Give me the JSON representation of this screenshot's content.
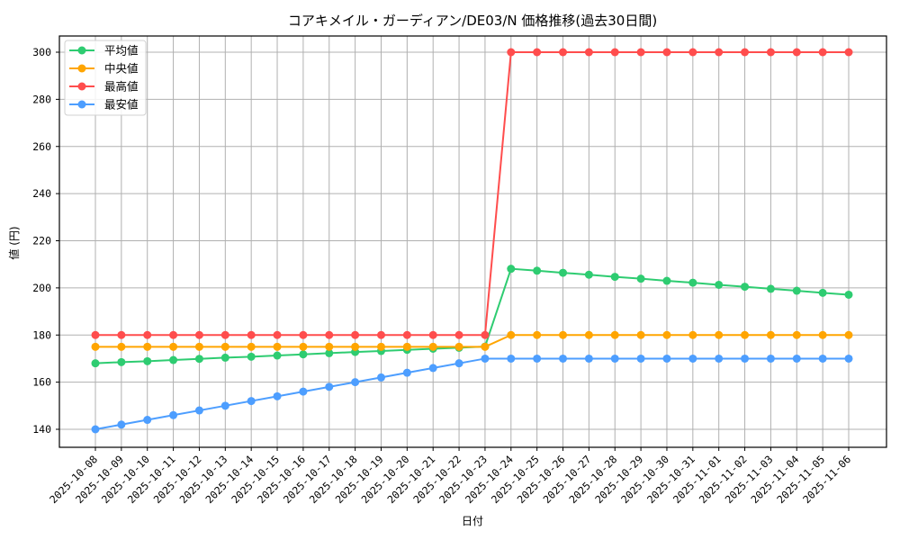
{
  "chart_data": {
    "type": "line",
    "title": "コアキメイル・ガーディアン/DE03/N 価格推移(過去30日間)",
    "xlabel": "日付",
    "ylabel": "値 (円)",
    "ylim": [
      133,
      308
    ],
    "yticks": [
      140,
      160,
      180,
      200,
      220,
      240,
      260,
      280,
      300
    ],
    "grid": true,
    "legend_position": "upper left",
    "x": [
      "2025-10-08",
      "2025-10-09",
      "2025-10-10",
      "2025-10-11",
      "2025-10-12",
      "2025-10-13",
      "2025-10-14",
      "2025-10-15",
      "2025-10-16",
      "2025-10-17",
      "2025-10-18",
      "2025-10-19",
      "2025-10-20",
      "2025-10-21",
      "2025-10-22",
      "2025-10-23",
      "2025-10-24",
      "2025-10-25",
      "2025-10-26",
      "2025-10-27",
      "2025-10-28",
      "2025-10-29",
      "2025-10-30",
      "2025-10-31",
      "2025-11-01",
      "2025-11-02",
      "2025-11-03",
      "2025-11-04",
      "2025-11-05",
      "2025-11-06"
    ],
    "series": [
      {
        "name": "平均値",
        "color": "#2ecc71",
        "values": [
          168.0,
          168.5,
          168.9,
          169.4,
          169.9,
          170.4,
          170.8,
          171.3,
          171.8,
          172.3,
          172.8,
          173.2,
          173.7,
          174.2,
          174.6,
          175.1,
          208.1,
          207.3,
          206.4,
          205.6,
          204.7,
          203.9,
          203.0,
          202.2,
          201.3,
          200.5,
          199.6,
          198.8,
          197.9,
          197.1
        ]
      },
      {
        "name": "中央値",
        "color": "#ffa500",
        "values": [
          175,
          175,
          175,
          175,
          175,
          175,
          175,
          175,
          175,
          175,
          175,
          175,
          175,
          175,
          175,
          175,
          180,
          180,
          180,
          180,
          180,
          180,
          180,
          180,
          180,
          180,
          180,
          180,
          180,
          180
        ]
      },
      {
        "name": "最高値",
        "color": "#ff4d4d",
        "values": [
          180,
          180,
          180,
          180,
          180,
          180,
          180,
          180,
          180,
          180,
          180,
          180,
          180,
          180,
          180,
          180,
          300,
          300,
          300,
          300,
          300,
          300,
          300,
          300,
          300,
          300,
          300,
          300,
          300,
          300
        ]
      },
      {
        "name": "最安値",
        "color": "#4d9eff",
        "values": [
          140,
          142,
          144,
          146,
          148,
          150,
          152,
          154,
          156,
          158,
          160,
          162,
          164,
          166,
          168,
          170,
          170,
          170,
          170,
          170,
          170,
          170,
          170,
          170,
          170,
          170,
          170,
          170,
          170,
          170
        ]
      }
    ]
  }
}
